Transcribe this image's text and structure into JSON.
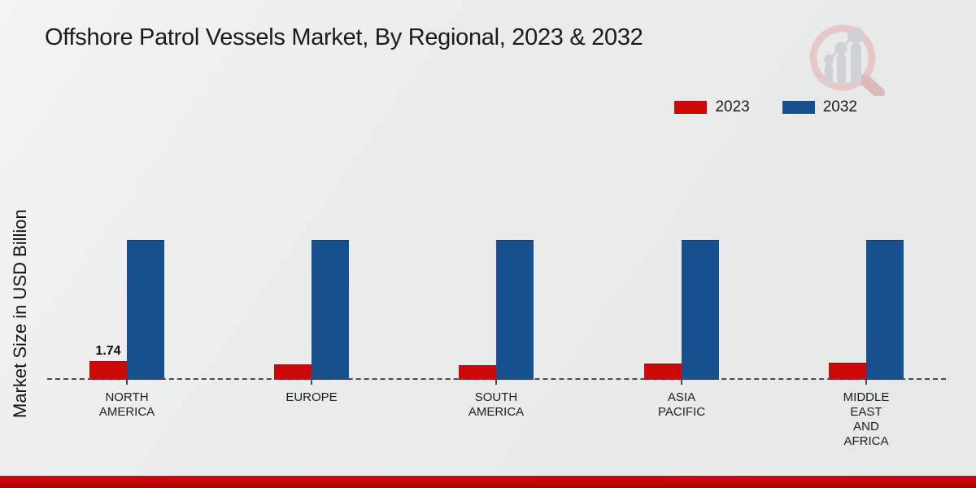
{
  "page": {
    "title": "Offshore Patrol Vessels Market, By Regional, 2023 & 2032",
    "ylabel": "Market Size in USD Billion"
  },
  "colors": {
    "series_2023": "#cc0808",
    "series_2032": "#17508e",
    "baseline": "#4b4b4b",
    "footer_stripe": "#c00404",
    "title_text": "#1b1b1b"
  },
  "watermark": {
    "icon": "market-research-future-logo"
  },
  "chart_data": {
    "type": "bar",
    "title": "Offshore Patrol Vessels Market, By Regional, 2023 & 2032",
    "xlabel": "",
    "ylabel": "Market Size in USD Billion",
    "categories": [
      "NORTH AMERICA",
      "EUROPE",
      "SOUTH AMERICA",
      "ASIA PACIFIC",
      "MIDDLE EAST AND AFRICA"
    ],
    "label_lines": [
      [
        "NORTH",
        "AMERICA"
      ],
      [
        "EUROPE"
      ],
      [
        "SOUTH",
        "AMERICA"
      ],
      [
        "ASIA",
        "PACIFIC"
      ],
      [
        "MIDDLE",
        "EAST",
        "AND",
        "AFRICA"
      ]
    ],
    "series": [
      {
        "name": "2023",
        "color": "#cc0808",
        "values": [
          1.74,
          1.46,
          1.36,
          1.54,
          1.61
        ]
      },
      {
        "name": "2032",
        "color": "#17508e",
        "values": [
          13.0,
          13.0,
          13.0,
          13.0,
          13.0
        ]
      }
    ],
    "data_labels": [
      "1.74",
      "",
      "",
      "",
      ""
    ],
    "legend_position": "top-right",
    "grid": false,
    "baseline_style": "dashed",
    "ylim": [
      0,
      14
    ]
  }
}
